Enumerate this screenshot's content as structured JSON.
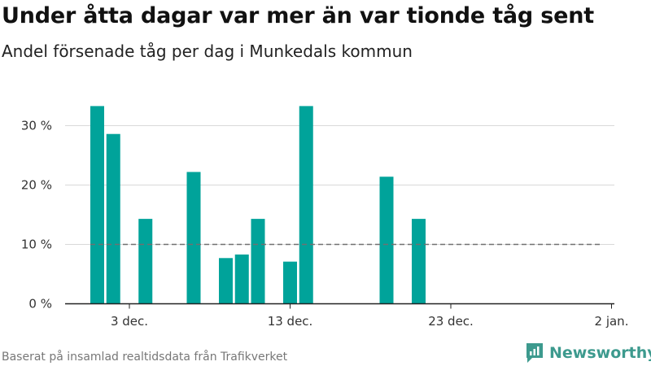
{
  "title": "Under åtta dagar var mer än var tionde tåg sent",
  "subtitle": "Andel försenade tåg per dag i Munkedals kommun",
  "footer": "Baserat på insamlad realtidsdata från Trafikverket",
  "brand": "Newsworthy",
  "colors": {
    "bar": "#00a39a",
    "reference": "#707070",
    "grid": "#d9d9d9",
    "axis": "#222222",
    "brand": "#3d9a8e"
  },
  "chart_data": {
    "type": "bar",
    "x_axis": "date",
    "x": [
      "2019-12-01",
      "2019-12-02",
      "2019-12-04",
      "2019-12-07",
      "2019-12-09",
      "2019-12-10",
      "2019-12-11",
      "2019-12-13",
      "2019-12-14",
      "2019-12-19",
      "2019-12-21"
    ],
    "values": [
      33.3,
      28.6,
      14.3,
      22.2,
      7.7,
      8.3,
      14.3,
      7.1,
      33.3,
      21.4,
      14.3
    ],
    "unit": "%",
    "ylim": [
      0,
      35
    ],
    "yticks": [
      0,
      10,
      20,
      30
    ],
    "ytick_labels": [
      "0 %",
      "10 %",
      "20 %",
      "30 %"
    ],
    "xticks": [
      "2019-12-03",
      "2019-12-13",
      "2019-12-23",
      "2020-01-02"
    ],
    "xtick_labels": [
      "3 dec.",
      "13 dec.",
      "23 dec.",
      "2 jan."
    ],
    "reference_line": {
      "value": 10,
      "from": "2019-12-01",
      "to": "2020-01-01",
      "style": "dashed"
    },
    "grid": true
  }
}
